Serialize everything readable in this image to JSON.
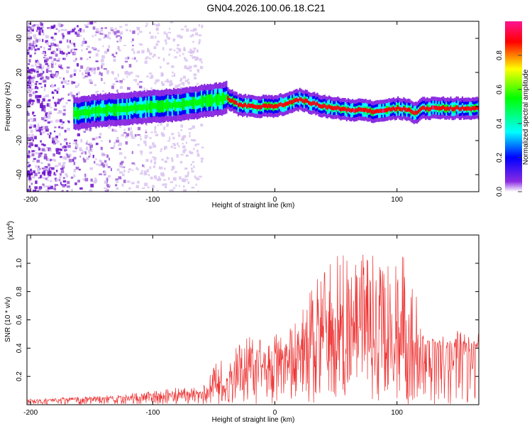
{
  "title": "GN04.2026.100.06.18.C21",
  "chart_data": [
    {
      "type": "heatmap",
      "name": "spectrogram",
      "xlabel": "Height of straight line (km)",
      "ylabel": "Frequency (Hz)",
      "xlim": [
        -203,
        167
      ],
      "ylim": [
        -50,
        50
      ],
      "xticks": [
        -200,
        -100,
        0,
        100
      ],
      "yticks": [
        -40,
        -20,
        0,
        20,
        40
      ],
      "colorbar": {
        "label": "Normalized spectral amplitude",
        "range": [
          0,
          1
        ],
        "ticks": [
          "0.0",
          "0.2",
          "0.4",
          "0.6",
          "0.8"
        ],
        "tick_values": [
          0.0,
          0.2,
          0.4,
          0.6,
          0.8
        ]
      },
      "colormap": [
        "#ffffff",
        "#8a2be2",
        "#0000ff",
        "#00ffff",
        "#00ff00",
        "#ffff00",
        "#ff0000",
        "#ff1493"
      ],
      "ridge": {
        "x": [
          -160,
          -140,
          -120,
          -100,
          -80,
          -60,
          -40,
          -30,
          -20,
          0,
          10,
          20,
          30,
          40,
          50,
          60,
          70,
          80,
          90,
          100,
          110,
          115,
          120,
          130,
          140,
          150,
          167
        ],
        "freq": [
          -4,
          -2,
          -1,
          0,
          1,
          3,
          5,
          1,
          0,
          0,
          2,
          4,
          2,
          0,
          -1,
          -2,
          -2,
          -3,
          -2,
          -1,
          -2,
          -4,
          -1,
          -1,
          -1,
          -1,
          -1
        ]
      },
      "noise_region_x": [
        -203,
        -60
      ]
    },
    {
      "type": "line",
      "name": "snr",
      "xlabel": "Height of straight line (km)",
      "ylabel": "SNR (10 * v/v)",
      "multiplier": "(x10",
      "multiplier_exp": "4",
      "multiplier_close": ")",
      "xlim": [
        -203,
        167
      ],
      "ylim": [
        0,
        1.2
      ],
      "xticks": [
        -200,
        -100,
        0,
        100
      ],
      "yticks": [
        0.2,
        0.4,
        0.6,
        0.8,
        1.0
      ],
      "color": "#ee3333",
      "envelope": {
        "x": [
          -203,
          -150,
          -120,
          -100,
          -80,
          -60,
          -50,
          -40,
          -30,
          -20,
          -10,
          0,
          10,
          20,
          25,
          30,
          40,
          50,
          60,
          70,
          80,
          90,
          100,
          110,
          115,
          120,
          130,
          140,
          150,
          167
        ],
        "base": [
          0.03,
          0.04,
          0.05,
          0.06,
          0.07,
          0.08,
          0.12,
          0.18,
          0.22,
          0.26,
          0.28,
          0.3,
          0.34,
          0.38,
          0.42,
          0.46,
          0.5,
          0.52,
          0.5,
          0.48,
          0.47,
          0.46,
          0.45,
          0.44,
          0.42,
          0.4,
          0.4,
          0.41,
          0.42,
          0.41
        ],
        "spike": [
          0.01,
          0.02,
          0.03,
          0.04,
          0.05,
          0.05,
          0.15,
          0.25,
          0.25,
          0.22,
          0.22,
          0.2,
          0.22,
          0.25,
          0.3,
          0.4,
          0.45,
          0.55,
          0.6,
          0.6,
          0.6,
          0.55,
          0.55,
          0.7,
          0.5,
          0.1,
          0.06,
          0.05,
          0.05,
          0.04
        ]
      }
    }
  ]
}
